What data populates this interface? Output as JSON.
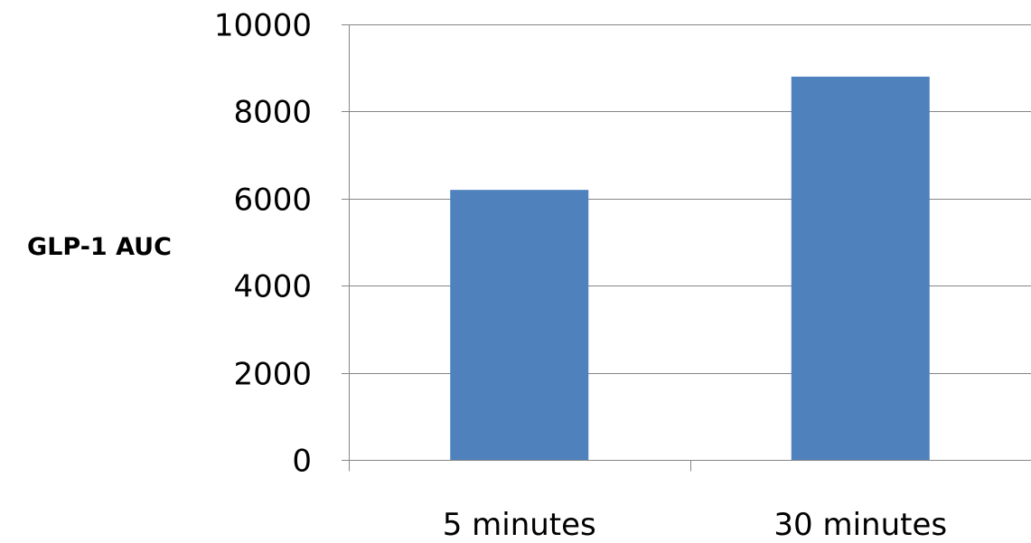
{
  "chart_data": {
    "type": "bar",
    "categories": [
      "5 minutes",
      "30 minutes"
    ],
    "values": [
      6200,
      8800
    ],
    "title": "",
    "xlabel": "",
    "ylabel": "GLP-1 AUC",
    "ylim": [
      0,
      10000
    ],
    "yticks": [
      0,
      2000,
      4000,
      6000,
      8000,
      10000
    ],
    "ytick_labels": [
      "0",
      "2000",
      "4000",
      "6000",
      "8000",
      "10000"
    ],
    "grid": true,
    "legend": "none",
    "colors": {
      "bar": "#4F81BD",
      "grid": "#868686",
      "text": "#000000"
    }
  }
}
